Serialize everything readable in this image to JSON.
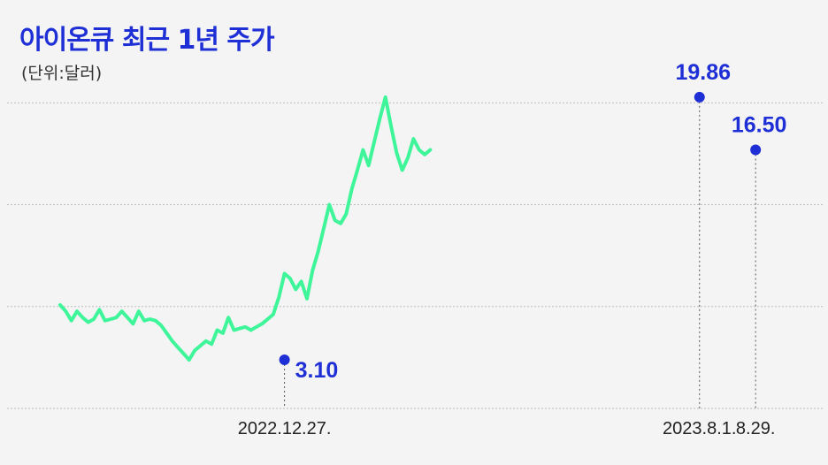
{
  "header": {
    "title": "아이온큐 최근 1년 주가",
    "unit": "(단위:달러)"
  },
  "colors": {
    "line": "#3ff59a",
    "accent": "#1f2fd6",
    "grid": "#bdbdbd",
    "background": "#f4f4f4"
  },
  "chart_data": {
    "type": "line",
    "title": "아이온큐 최근 1년 주가",
    "unit": "(단위:달러)",
    "ylim": [
      0,
      22
    ],
    "grid": "horizontal",
    "x_ticks": [
      {
        "index": 40,
        "label": "2022.12.27."
      },
      {
        "index": 114,
        "label": "2023.8.1."
      },
      {
        "index": 124,
        "label": "8.29."
      }
    ],
    "annotations": [
      {
        "index": 40,
        "value": 3.1,
        "label": "3.10"
      },
      {
        "index": 114,
        "value": 19.86,
        "label": "19.86"
      },
      {
        "index": 124,
        "value": 16.5,
        "label": "16.50"
      }
    ],
    "series": [
      {
        "values": [
          6.6,
          6.2,
          5.6,
          6.2,
          5.8,
          5.5,
          5.7,
          6.3,
          5.6,
          5.7,
          5.8,
          6.2,
          5.8,
          5.4,
          6.2,
          5.6,
          5.7,
          5.6,
          5.3,
          4.8,
          4.3,
          3.9,
          3.5,
          3.1,
          3.7,
          4.0,
          4.3,
          4.1,
          5.0,
          4.8,
          5.8,
          5.0,
          5.1,
          5.2,
          5.0,
          5.2,
          5.4,
          5.7,
          6.0,
          7.1,
          8.6,
          8.3,
          7.6,
          8.1,
          7.0,
          8.8,
          10.0,
          11.5,
          13.0,
          12.0,
          11.8,
          12.4,
          14.0,
          15.2,
          16.5,
          15.5,
          17.0,
          18.5,
          19.86,
          18.0,
          16.3,
          15.2,
          16.0,
          17.2,
          16.5,
          16.2,
          16.5
        ]
      }
    ]
  }
}
